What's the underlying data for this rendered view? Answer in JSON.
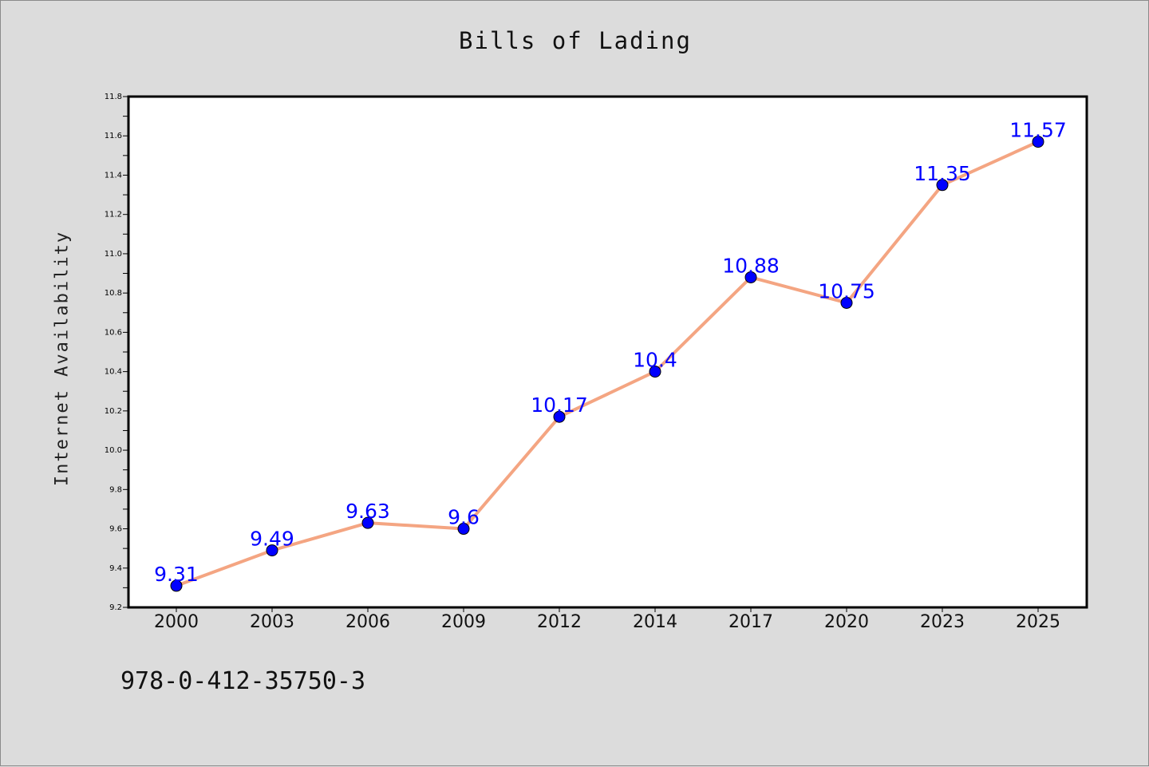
{
  "chart_data": {
    "type": "line",
    "title": "Bills of Lading",
    "xlabel": "",
    "ylabel": "Internet Availability",
    "categories": [
      "2000",
      "2003",
      "2006",
      "2009",
      "2012",
      "2014",
      "2017",
      "2020",
      "2023",
      "2025"
    ],
    "series": [
      {
        "values": [
          9.31,
          9.49,
          9.63,
          9.6,
          10.17,
          10.4,
          10.88,
          10.75,
          11.35,
          11.57
        ],
        "labels": [
          "9.31",
          "9.49",
          "9.63",
          "9.6",
          "10.17",
          "10.4",
          "10.88",
          "10.75",
          "11.35",
          "11.57"
        ]
      }
    ],
    "ylim": [
      9.2,
      11.8
    ],
    "yticks": [
      "9.2",
      "9.4",
      "9.6",
      "9.8",
      "10.0",
      "10.2",
      "10.4",
      "10.6",
      "10.8",
      "11.0",
      "11.2",
      "11.4",
      "11.6",
      "11.8"
    ],
    "grid": false,
    "legend": "none",
    "colors": {
      "line": "#f4a582",
      "marker": "#0000ff",
      "data_label": "#0000ff",
      "background": "#dcdcdc",
      "plot_background": "#ffffff"
    }
  },
  "footnote": "978-0-412-35750-3"
}
